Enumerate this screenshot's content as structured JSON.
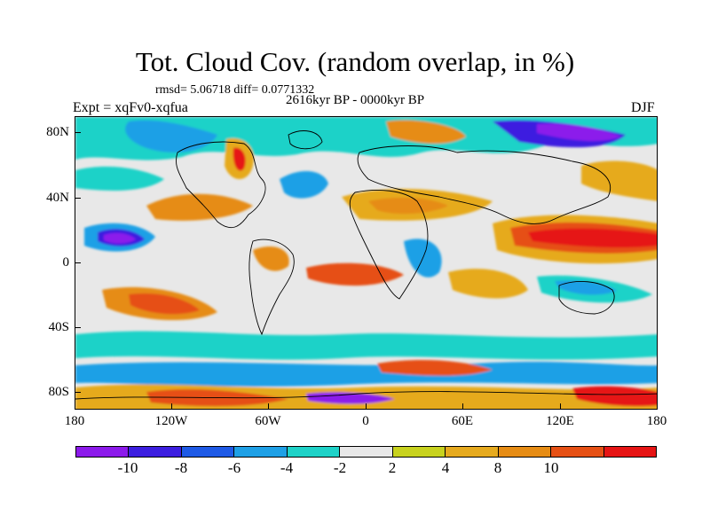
{
  "title": "Tot. Cloud Cov. (random overlap, in %)",
  "stats": "rmsd= 5.06718  diff= 0.0771332",
  "period": "2616kyr BP - 0000kyr BP",
  "experiment": "Expt = xqFv0-xqfua",
  "season": "DJF",
  "y_axis_labels": [
    "80N",
    "40N",
    "0",
    "40S",
    "80S"
  ],
  "x_axis_labels": [
    "180",
    "120W",
    "60W",
    "0",
    "60E",
    "120E",
    "180"
  ],
  "colorbar": {
    "colors": [
      "#8c1aeb",
      "#3c1ee0",
      "#1e5ae6",
      "#1ea0e6",
      "#1ed2c8",
      "#e8e8e8",
      "#c8d21e",
      "#e6aa1e",
      "#e68c14",
      "#e65014",
      "#e61414"
    ],
    "labels": [
      "-10",
      "-8",
      "-6",
      "-4",
      "-2",
      "2",
      "4",
      "8",
      "10"
    ]
  }
}
